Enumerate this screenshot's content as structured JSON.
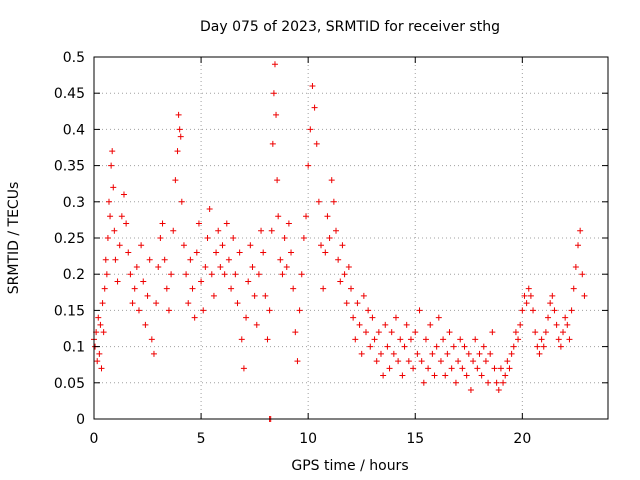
{
  "chart_data": {
    "type": "scatter",
    "title": "Day 075 of 2023, SRMTID for receiver sthg",
    "xlabel": "GPS time / hours",
    "ylabel": "SRMTID / TECUs",
    "xlim": [
      0,
      24
    ],
    "ylim": [
      0,
      0.5
    ],
    "x_ticks": [
      0,
      5,
      10,
      15,
      20
    ],
    "y_ticks": [
      0,
      0.05,
      0.1,
      0.15,
      0.2,
      0.25,
      0.3,
      0.35,
      0.4,
      0.45,
      0.5
    ],
    "x_tick_labels": [
      "0",
      "5",
      "10",
      "15",
      "20"
    ],
    "y_tick_labels": [
      "0",
      "0.05",
      "0.1",
      "0.15",
      "0.2",
      "0.25",
      "0.3",
      "0.35",
      "0.4",
      "0.45",
      "0.5"
    ],
    "grid": true,
    "marker": "+",
    "color": "#ee0000",
    "series": [
      {
        "name": "SRMTID",
        "points": [
          [
            0.0,
            0.11
          ],
          [
            0.05,
            0.1
          ],
          [
            0.1,
            0.12
          ],
          [
            0.15,
            0.08
          ],
          [
            0.2,
            0.14
          ],
          [
            0.25,
            0.09
          ],
          [
            0.3,
            0.13
          ],
          [
            0.35,
            0.07
          ],
          [
            0.4,
            0.16
          ],
          [
            0.45,
            0.12
          ],
          [
            0.5,
            0.18
          ],
          [
            0.55,
            0.22
          ],
          [
            0.6,
            0.2
          ],
          [
            0.65,
            0.25
          ],
          [
            0.7,
            0.3
          ],
          [
            0.75,
            0.28
          ],
          [
            0.8,
            0.35
          ],
          [
            0.85,
            0.37
          ],
          [
            0.9,
            0.32
          ],
          [
            0.95,
            0.26
          ],
          [
            1.0,
            0.22
          ],
          [
            1.1,
            0.19
          ],
          [
            1.2,
            0.24
          ],
          [
            1.3,
            0.28
          ],
          [
            1.4,
            0.31
          ],
          [
            1.5,
            0.27
          ],
          [
            1.6,
            0.23
          ],
          [
            1.7,
            0.2
          ],
          [
            1.8,
            0.16
          ],
          [
            1.9,
            0.18
          ],
          [
            2.0,
            0.21
          ],
          [
            2.1,
            0.15
          ],
          [
            2.2,
            0.24
          ],
          [
            2.3,
            0.19
          ],
          [
            2.4,
            0.13
          ],
          [
            2.5,
            0.17
          ],
          [
            2.6,
            0.22
          ],
          [
            2.7,
            0.11
          ],
          [
            2.8,
            0.09
          ],
          [
            2.9,
            0.16
          ],
          [
            3.0,
            0.21
          ],
          [
            3.1,
            0.25
          ],
          [
            3.2,
            0.27
          ],
          [
            3.3,
            0.22
          ],
          [
            3.4,
            0.18
          ],
          [
            3.5,
            0.15
          ],
          [
            3.6,
            0.2
          ],
          [
            3.7,
            0.26
          ],
          [
            3.8,
            0.33
          ],
          [
            3.9,
            0.37
          ],
          [
            3.95,
            0.42
          ],
          [
            4.0,
            0.4
          ],
          [
            4.05,
            0.39
          ],
          [
            4.1,
            0.3
          ],
          [
            4.2,
            0.24
          ],
          [
            4.3,
            0.2
          ],
          [
            4.4,
            0.16
          ],
          [
            4.5,
            0.22
          ],
          [
            4.6,
            0.18
          ],
          [
            4.7,
            0.14
          ],
          [
            4.8,
            0.23
          ],
          [
            4.9,
            0.27
          ],
          [
            5.0,
            0.19
          ],
          [
            5.1,
            0.15
          ],
          [
            5.2,
            0.21
          ],
          [
            5.3,
            0.25
          ],
          [
            5.4,
            0.29
          ],
          [
            5.5,
            0.2
          ],
          [
            5.6,
            0.17
          ],
          [
            5.7,
            0.23
          ],
          [
            5.8,
            0.26
          ],
          [
            5.9,
            0.21
          ],
          [
            6.0,
            0.24
          ],
          [
            6.1,
            0.2
          ],
          [
            6.2,
            0.27
          ],
          [
            6.3,
            0.22
          ],
          [
            6.4,
            0.18
          ],
          [
            6.5,
            0.25
          ],
          [
            6.6,
            0.2
          ],
          [
            6.7,
            0.16
          ],
          [
            6.8,
            0.23
          ],
          [
            6.9,
            0.11
          ],
          [
            7.0,
            0.07
          ],
          [
            7.1,
            0.14
          ],
          [
            7.2,
            0.19
          ],
          [
            7.3,
            0.24
          ],
          [
            7.4,
            0.21
          ],
          [
            7.5,
            0.17
          ],
          [
            7.6,
            0.13
          ],
          [
            7.7,
            0.2
          ],
          [
            7.8,
            0.26
          ],
          [
            7.9,
            0.23
          ],
          [
            8.0,
            0.17
          ],
          [
            8.1,
            0.11
          ],
          [
            8.2,
            0.15
          ],
          [
            8.3,
            0.26
          ],
          [
            8.35,
            0.38
          ],
          [
            8.4,
            0.45
          ],
          [
            8.45,
            0.49
          ],
          [
            8.5,
            0.42
          ],
          [
            8.55,
            0.33
          ],
          [
            8.6,
            0.28
          ],
          [
            8.7,
            0.22
          ],
          [
            8.8,
            0.2
          ],
          [
            8.9,
            0.25
          ],
          [
            9.0,
            0.21
          ],
          [
            9.1,
            0.27
          ],
          [
            9.2,
            0.23
          ],
          [
            9.3,
            0.18
          ],
          [
            9.4,
            0.12
          ],
          [
            9.5,
            0.08
          ],
          [
            9.6,
            0.15
          ],
          [
            9.7,
            0.2
          ],
          [
            9.8,
            0.25
          ],
          [
            9.9,
            0.28
          ],
          [
            10.0,
            0.35
          ],
          [
            10.1,
            0.4
          ],
          [
            10.2,
            0.46
          ],
          [
            10.3,
            0.43
          ],
          [
            10.4,
            0.38
          ],
          [
            10.5,
            0.3
          ],
          [
            10.6,
            0.24
          ],
          [
            10.7,
            0.18
          ],
          [
            10.8,
            0.23
          ],
          [
            10.9,
            0.28
          ],
          [
            11.0,
            0.25
          ],
          [
            11.1,
            0.33
          ],
          [
            11.2,
            0.3
          ],
          [
            11.3,
            0.26
          ],
          [
            11.4,
            0.22
          ],
          [
            11.5,
            0.19
          ],
          [
            11.6,
            0.24
          ],
          [
            11.7,
            0.2
          ],
          [
            11.8,
            0.16
          ],
          [
            11.9,
            0.21
          ],
          [
            12.0,
            0.18
          ],
          [
            12.1,
            0.14
          ],
          [
            12.2,
            0.11
          ],
          [
            12.3,
            0.16
          ],
          [
            12.4,
            0.13
          ],
          [
            12.5,
            0.09
          ],
          [
            12.6,
            0.17
          ],
          [
            12.7,
            0.12
          ],
          [
            12.8,
            0.15
          ],
          [
            12.9,
            0.1
          ],
          [
            13.0,
            0.14
          ],
          [
            13.1,
            0.11
          ],
          [
            13.2,
            0.08
          ],
          [
            13.3,
            0.12
          ],
          [
            13.4,
            0.09
          ],
          [
            13.5,
            0.06
          ],
          [
            13.6,
            0.13
          ],
          [
            13.7,
            0.1
          ],
          [
            13.8,
            0.07
          ],
          [
            13.9,
            0.12
          ],
          [
            14.0,
            0.09
          ],
          [
            14.1,
            0.14
          ],
          [
            14.2,
            0.08
          ],
          [
            14.3,
            0.11
          ],
          [
            14.4,
            0.06
          ],
          [
            14.5,
            0.1
          ],
          [
            14.6,
            0.13
          ],
          [
            14.7,
            0.08
          ],
          [
            14.8,
            0.11
          ],
          [
            14.9,
            0.07
          ],
          [
            15.0,
            0.12
          ],
          [
            15.1,
            0.09
          ],
          [
            15.2,
            0.15
          ],
          [
            15.3,
            0.08
          ],
          [
            15.4,
            0.05
          ],
          [
            15.5,
            0.11
          ],
          [
            15.6,
            0.07
          ],
          [
            15.7,
            0.13
          ],
          [
            15.8,
            0.09
          ],
          [
            15.9,
            0.06
          ],
          [
            16.0,
            0.1
          ],
          [
            16.1,
            0.14
          ],
          [
            16.2,
            0.08
          ],
          [
            16.3,
            0.11
          ],
          [
            16.4,
            0.06
          ],
          [
            16.5,
            0.09
          ],
          [
            16.6,
            0.12
          ],
          [
            16.7,
            0.07
          ],
          [
            16.8,
            0.1
          ],
          [
            16.9,
            0.05
          ],
          [
            17.0,
            0.08
          ],
          [
            17.1,
            0.11
          ],
          [
            17.2,
            0.07
          ],
          [
            17.3,
            0.1
          ],
          [
            17.4,
            0.06
          ],
          [
            17.5,
            0.09
          ],
          [
            17.6,
            0.04
          ],
          [
            17.7,
            0.08
          ],
          [
            17.8,
            0.11
          ],
          [
            17.9,
            0.07
          ],
          [
            18.0,
            0.09
          ],
          [
            18.1,
            0.06
          ],
          [
            18.2,
            0.1
          ],
          [
            18.3,
            0.08
          ],
          [
            18.4,
            0.05
          ],
          [
            18.5,
            0.09
          ],
          [
            18.6,
            0.12
          ],
          [
            18.7,
            0.07
          ],
          [
            18.8,
            0.05
          ],
          [
            18.9,
            0.04
          ],
          [
            19.0,
            0.07
          ],
          [
            19.1,
            0.05
          ],
          [
            19.2,
            0.06
          ],
          [
            19.3,
            0.08
          ],
          [
            19.4,
            0.07
          ],
          [
            19.5,
            0.09
          ],
          [
            19.6,
            0.1
          ],
          [
            19.7,
            0.12
          ],
          [
            19.8,
            0.11
          ],
          [
            19.9,
            0.13
          ],
          [
            20.0,
            0.15
          ],
          [
            20.1,
            0.17
          ],
          [
            20.2,
            0.16
          ],
          [
            20.3,
            0.18
          ],
          [
            20.4,
            0.17
          ],
          [
            20.5,
            0.15
          ],
          [
            20.6,
            0.12
          ],
          [
            20.7,
            0.1
          ],
          [
            20.8,
            0.09
          ],
          [
            20.9,
            0.11
          ],
          [
            21.0,
            0.1
          ],
          [
            21.1,
            0.12
          ],
          [
            21.2,
            0.14
          ],
          [
            21.3,
            0.16
          ],
          [
            21.4,
            0.17
          ],
          [
            21.5,
            0.15
          ],
          [
            21.6,
            0.13
          ],
          [
            21.7,
            0.11
          ],
          [
            21.8,
            0.1
          ],
          [
            21.9,
            0.12
          ],
          [
            22.0,
            0.14
          ],
          [
            22.1,
            0.13
          ],
          [
            22.2,
            0.11
          ],
          [
            22.3,
            0.15
          ],
          [
            22.4,
            0.18
          ],
          [
            22.5,
            0.21
          ],
          [
            22.6,
            0.24
          ],
          [
            22.7,
            0.26
          ],
          [
            22.8,
            0.2
          ],
          [
            22.9,
            0.17
          ],
          [
            8.2,
            0.0
          ],
          [
            8.25,
            0.0
          ]
        ]
      }
    ]
  }
}
